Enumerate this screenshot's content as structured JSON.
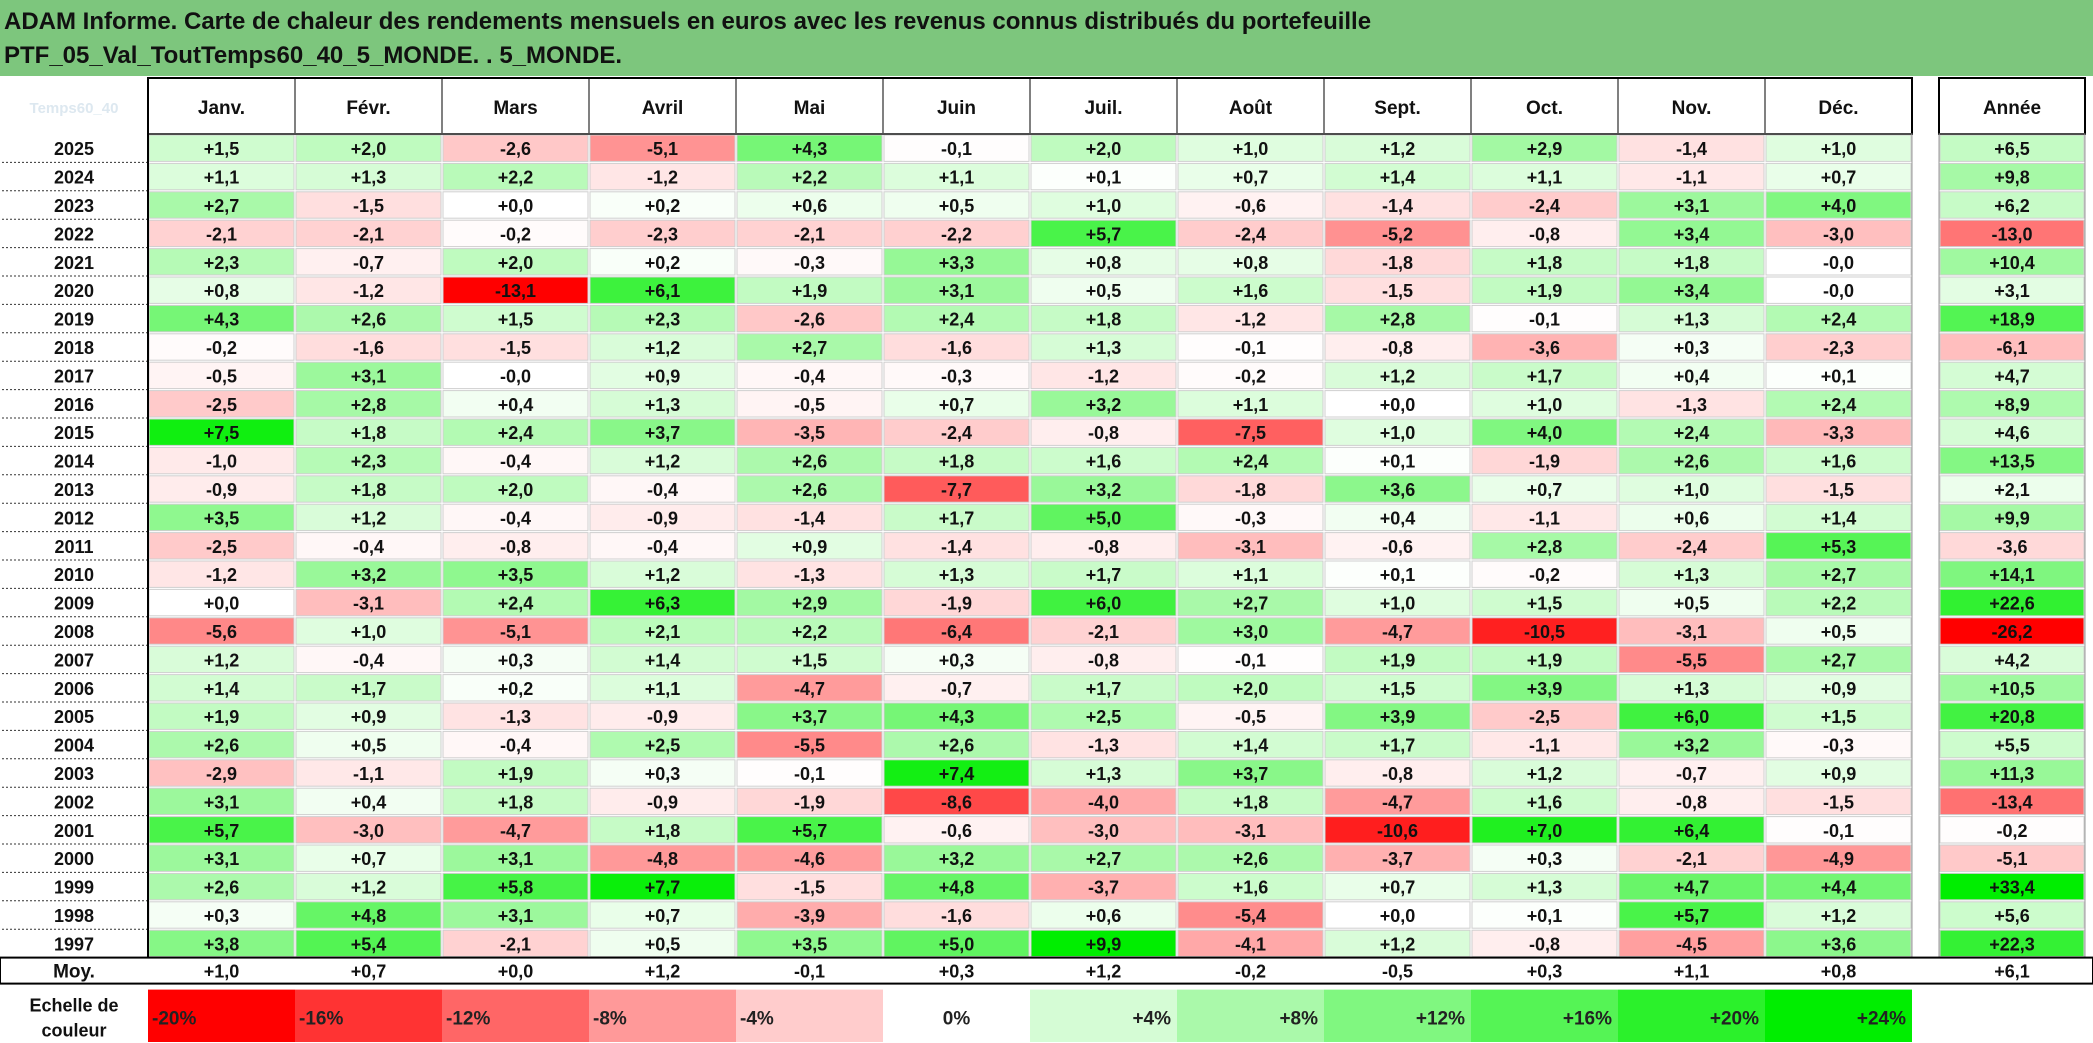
{
  "title": {
    "line1": "ADAM Informe. Carte de chaleur des rendements mensuels en euros avec les revenus connus distribués du portefeuille",
    "line2": "PTF_05_Val_ToutTemps60_40_5_MONDE. . 5_MONDE."
  },
  "corner_label": "Temps60_40",
  "chart_data": {
    "type": "heatmap",
    "months": [
      "Janv.",
      "Févr.",
      "Mars",
      "Avril",
      "Mai",
      "Juin",
      "Juil.",
      "Août",
      "Sept.",
      "Oct.",
      "Nov.",
      "Déc."
    ],
    "year_header": "Année",
    "rows": [
      {
        "year": "2025",
        "values": [
          1.5,
          2.0,
          -2.6,
          -5.1,
          4.3,
          -0.1,
          2.0,
          1.0,
          1.2,
          2.9,
          -1.4,
          1.0
        ],
        "annual": 6.5
      },
      {
        "year": "2024",
        "values": [
          1.1,
          1.3,
          2.2,
          -1.2,
          2.2,
          1.1,
          0.1,
          0.7,
          1.4,
          1.1,
          -1.1,
          0.7
        ],
        "annual": 9.8
      },
      {
        "year": "2023",
        "values": [
          2.7,
          -1.5,
          0.0,
          0.2,
          0.6,
          0.5,
          1.0,
          -0.6,
          -1.4,
          -2.4,
          3.1,
          4.0
        ],
        "annual": 6.2
      },
      {
        "year": "2022",
        "values": [
          -2.1,
          -2.1,
          -0.2,
          -2.3,
          -2.1,
          -2.2,
          5.7,
          -2.4,
          -5.2,
          -0.8,
          3.4,
          -3.0
        ],
        "annual": -13.0
      },
      {
        "year": "2021",
        "values": [
          2.3,
          -0.7,
          2.0,
          0.2,
          -0.3,
          3.3,
          0.8,
          0.8,
          -1.8,
          1.8,
          1.8,
          -0.0
        ],
        "annual": 10.4
      },
      {
        "year": "2020",
        "values": [
          0.8,
          -1.2,
          -13.1,
          6.1,
          1.9,
          3.1,
          0.5,
          1.6,
          -1.5,
          1.9,
          3.4,
          -0.0
        ],
        "annual": 3.1
      },
      {
        "year": "2019",
        "values": [
          4.3,
          2.6,
          1.5,
          2.3,
          -2.6,
          2.4,
          1.8,
          -1.2,
          2.8,
          -0.1,
          1.3,
          2.4
        ],
        "annual": 18.9
      },
      {
        "year": "2018",
        "values": [
          -0.2,
          -1.6,
          -1.5,
          1.2,
          2.7,
          -1.6,
          1.3,
          -0.1,
          -0.8,
          -3.6,
          0.3,
          -2.3
        ],
        "annual": -6.1
      },
      {
        "year": "2017",
        "values": [
          -0.5,
          3.1,
          -0.0,
          0.9,
          -0.4,
          -0.3,
          -1.2,
          -0.2,
          1.2,
          1.7,
          0.4,
          0.1
        ],
        "annual": 4.7
      },
      {
        "year": "2016",
        "values": [
          -2.5,
          2.8,
          0.4,
          1.3,
          -0.5,
          0.7,
          3.2,
          1.1,
          0.0,
          1.0,
          -1.3,
          2.4
        ],
        "annual": 8.9
      },
      {
        "year": "2015",
        "values": [
          7.5,
          1.8,
          2.4,
          3.7,
          -3.5,
          -2.4,
          -0.8,
          -7.5,
          1.0,
          4.0,
          2.4,
          -3.3
        ],
        "annual": 4.6
      },
      {
        "year": "2014",
        "values": [
          -1.0,
          2.3,
          -0.4,
          1.2,
          2.6,
          1.8,
          1.6,
          2.4,
          0.1,
          -1.9,
          2.6,
          1.6
        ],
        "annual": 13.5
      },
      {
        "year": "2013",
        "values": [
          -0.9,
          1.8,
          2.0,
          -0.4,
          2.6,
          -7.7,
          3.2,
          -1.8,
          3.6,
          0.7,
          1.0,
          -1.5
        ],
        "annual": 2.1
      },
      {
        "year": "2012",
        "values": [
          3.5,
          1.2,
          -0.4,
          -0.9,
          -1.4,
          1.7,
          5.0,
          -0.3,
          0.4,
          -1.1,
          0.6,
          1.4
        ],
        "annual": 9.9
      },
      {
        "year": "2011",
        "values": [
          -2.5,
          -0.4,
          -0.8,
          -0.4,
          0.9,
          -1.4,
          -0.8,
          -3.1,
          -0.6,
          2.8,
          -2.4,
          5.3
        ],
        "annual": -3.6
      },
      {
        "year": "2010",
        "values": [
          -1.2,
          3.2,
          3.5,
          1.2,
          -1.3,
          1.3,
          1.7,
          1.1,
          0.1,
          -0.2,
          1.3,
          2.7
        ],
        "annual": 14.1
      },
      {
        "year": "2009",
        "values": [
          0.0,
          -3.1,
          2.4,
          6.3,
          2.9,
          -1.9,
          6.0,
          2.7,
          1.0,
          1.5,
          0.5,
          2.2
        ],
        "annual": 22.6
      },
      {
        "year": "2008",
        "values": [
          -5.6,
          1.0,
          -5.1,
          2.1,
          2.2,
          -6.4,
          -2.1,
          3.0,
          -4.7,
          -10.5,
          -3.1,
          0.5
        ],
        "annual": -26.2
      },
      {
        "year": "2007",
        "values": [
          1.2,
          -0.4,
          0.3,
          1.4,
          1.5,
          0.3,
          -0.8,
          -0.1,
          1.9,
          1.9,
          -5.5,
          2.7
        ],
        "annual": 4.2
      },
      {
        "year": "2006",
        "values": [
          1.4,
          1.7,
          0.2,
          1.1,
          -4.7,
          -0.7,
          1.7,
          2.0,
          1.5,
          3.9,
          1.3,
          0.9
        ],
        "annual": 10.5
      },
      {
        "year": "2005",
        "values": [
          1.9,
          0.9,
          -1.3,
          -0.9,
          3.7,
          4.3,
          2.5,
          -0.5,
          3.9,
          -2.5,
          6.0,
          1.5
        ],
        "annual": 20.8
      },
      {
        "year": "2004",
        "values": [
          2.6,
          0.5,
          -0.4,
          2.5,
          -5.5,
          2.6,
          -1.3,
          1.4,
          1.7,
          -1.1,
          3.2,
          -0.3
        ],
        "annual": 5.5
      },
      {
        "year": "2003",
        "values": [
          -2.9,
          -1.1,
          1.9,
          0.3,
          -0.1,
          7.4,
          1.3,
          3.7,
          -0.8,
          1.2,
          -0.7,
          0.9
        ],
        "annual": 11.3
      },
      {
        "year": "2002",
        "values": [
          3.1,
          0.4,
          1.8,
          -0.9,
          -1.9,
          -8.6,
          -4.0,
          1.8,
          -4.7,
          1.6,
          -0.8,
          -1.5
        ],
        "annual": -13.4
      },
      {
        "year": "2001",
        "values": [
          5.7,
          -3.0,
          -4.7,
          1.8,
          5.7,
          -0.6,
          -3.0,
          -3.1,
          -10.6,
          7.0,
          6.4,
          -0.1
        ],
        "annual": -0.2
      },
      {
        "year": "2000",
        "values": [
          3.1,
          0.7,
          3.1,
          -4.8,
          -4.6,
          3.2,
          2.7,
          2.6,
          -3.7,
          0.3,
          -2.1,
          -4.9
        ],
        "annual": -5.1
      },
      {
        "year": "1999",
        "values": [
          2.6,
          1.2,
          5.8,
          7.7,
          -1.5,
          4.8,
          -3.7,
          1.6,
          0.7,
          1.3,
          4.7,
          4.4
        ],
        "annual": 33.4
      },
      {
        "year": "1998",
        "values": [
          0.3,
          4.8,
          3.1,
          0.7,
          -3.9,
          -1.6,
          0.6,
          -5.4,
          0.0,
          0.1,
          5.7,
          1.2
        ],
        "annual": 5.6
      },
      {
        "year": "1997",
        "values": [
          3.8,
          5.4,
          -2.1,
          0.5,
          3.5,
          5.0,
          9.9,
          -4.1,
          1.2,
          -0.8,
          -4.5,
          3.6
        ],
        "annual": 22.3
      }
    ],
    "average": {
      "label": "Moy.",
      "values": [
        1.0,
        0.7,
        0.0,
        1.2,
        -0.1,
        0.3,
        1.2,
        -0.2,
        -0.5,
        0.3,
        1.1,
        0.8
      ],
      "annual": 6.1
    },
    "color_scale": {
      "label_line1": "Echelle de",
      "label_line2": "couleur",
      "stops": [
        {
          "label": "-20%",
          "value": -20
        },
        {
          "label": "-16%",
          "value": -16
        },
        {
          "label": "-12%",
          "value": -12
        },
        {
          "label": "-8%",
          "value": -8
        },
        {
          "label": "-4%",
          "value": -4
        },
        {
          "label": "0%",
          "value": 0
        },
        {
          "label": "+4%",
          "value": 4
        },
        {
          "label": "+8%",
          "value": 8
        },
        {
          "label": "+12%",
          "value": 12
        },
        {
          "label": "+16%",
          "value": 16
        },
        {
          "label": "+20%",
          "value": 20
        },
        {
          "label": "+24%",
          "value": 24
        }
      ],
      "negative_color": "#ff0000",
      "positive_color": "#00ee00",
      "neutral_color": "#ffffff"
    },
    "colors": {
      "title_background": "#7dc67d",
      "text": "#111111"
    }
  }
}
